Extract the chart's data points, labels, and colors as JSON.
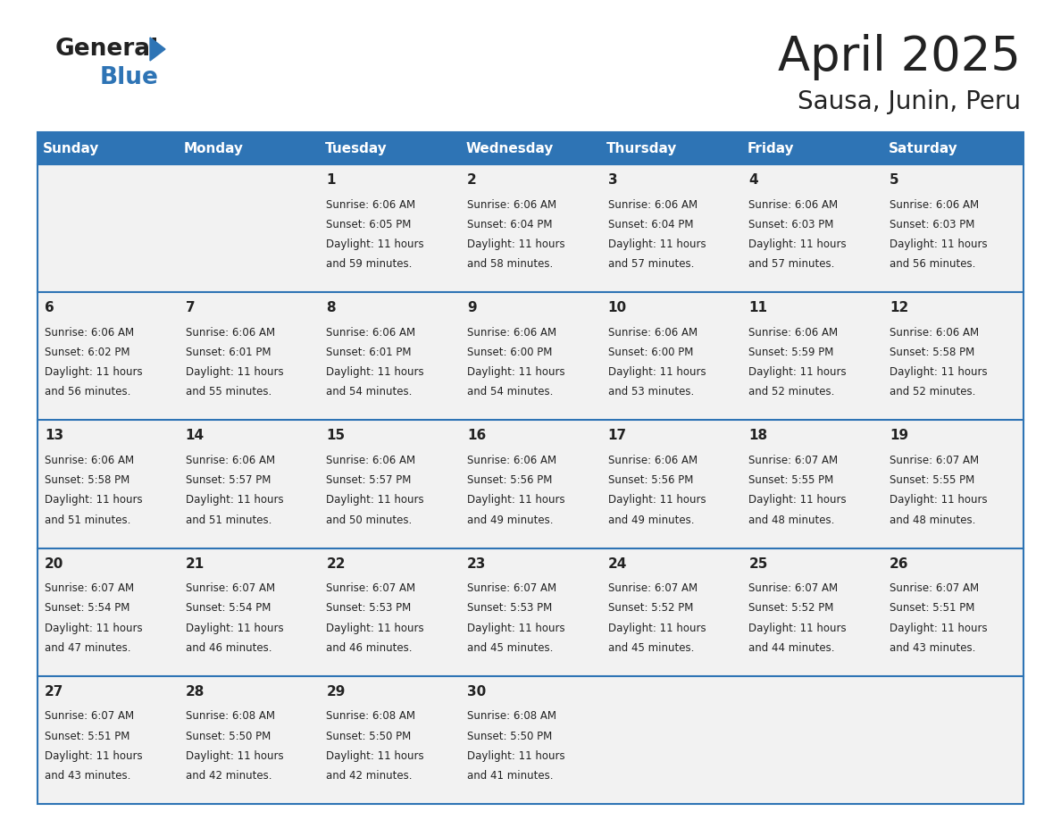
{
  "title": "April 2025",
  "subtitle": "Sausa, Junin, Peru",
  "header_color": "#2E74B5",
  "header_text_color": "#FFFFFF",
  "cell_bg_even": "#F2F2F2",
  "cell_bg_odd": "#FFFFFF",
  "cell_border_color": "#2E74B5",
  "day_headers": [
    "Sunday",
    "Monday",
    "Tuesday",
    "Wednesday",
    "Thursday",
    "Friday",
    "Saturday"
  ],
  "calendar_data": [
    [
      null,
      null,
      {
        "day": 1,
        "sunrise": "6:06 AM",
        "sunset": "6:05 PM",
        "daylight": "11 hours and 59 minutes"
      },
      {
        "day": 2,
        "sunrise": "6:06 AM",
        "sunset": "6:04 PM",
        "daylight": "11 hours and 58 minutes"
      },
      {
        "day": 3,
        "sunrise": "6:06 AM",
        "sunset": "6:04 PM",
        "daylight": "11 hours and 57 minutes"
      },
      {
        "day": 4,
        "sunrise": "6:06 AM",
        "sunset": "6:03 PM",
        "daylight": "11 hours and 57 minutes"
      },
      {
        "day": 5,
        "sunrise": "6:06 AM",
        "sunset": "6:03 PM",
        "daylight": "11 hours and 56 minutes"
      }
    ],
    [
      {
        "day": 6,
        "sunrise": "6:06 AM",
        "sunset": "6:02 PM",
        "daylight": "11 hours and 56 minutes"
      },
      {
        "day": 7,
        "sunrise": "6:06 AM",
        "sunset": "6:01 PM",
        "daylight": "11 hours and 55 minutes"
      },
      {
        "day": 8,
        "sunrise": "6:06 AM",
        "sunset": "6:01 PM",
        "daylight": "11 hours and 54 minutes"
      },
      {
        "day": 9,
        "sunrise": "6:06 AM",
        "sunset": "6:00 PM",
        "daylight": "11 hours and 54 minutes"
      },
      {
        "day": 10,
        "sunrise": "6:06 AM",
        "sunset": "6:00 PM",
        "daylight": "11 hours and 53 minutes"
      },
      {
        "day": 11,
        "sunrise": "6:06 AM",
        "sunset": "5:59 PM",
        "daylight": "11 hours and 52 minutes"
      },
      {
        "day": 12,
        "sunrise": "6:06 AM",
        "sunset": "5:58 PM",
        "daylight": "11 hours and 52 minutes"
      }
    ],
    [
      {
        "day": 13,
        "sunrise": "6:06 AM",
        "sunset": "5:58 PM",
        "daylight": "11 hours and 51 minutes"
      },
      {
        "day": 14,
        "sunrise": "6:06 AM",
        "sunset": "5:57 PM",
        "daylight": "11 hours and 51 minutes"
      },
      {
        "day": 15,
        "sunrise": "6:06 AM",
        "sunset": "5:57 PM",
        "daylight": "11 hours and 50 minutes"
      },
      {
        "day": 16,
        "sunrise": "6:06 AM",
        "sunset": "5:56 PM",
        "daylight": "11 hours and 49 minutes"
      },
      {
        "day": 17,
        "sunrise": "6:06 AM",
        "sunset": "5:56 PM",
        "daylight": "11 hours and 49 minutes"
      },
      {
        "day": 18,
        "sunrise": "6:07 AM",
        "sunset": "5:55 PM",
        "daylight": "11 hours and 48 minutes"
      },
      {
        "day": 19,
        "sunrise": "6:07 AM",
        "sunset": "5:55 PM",
        "daylight": "11 hours and 48 minutes"
      }
    ],
    [
      {
        "day": 20,
        "sunrise": "6:07 AM",
        "sunset": "5:54 PM",
        "daylight": "11 hours and 47 minutes"
      },
      {
        "day": 21,
        "sunrise": "6:07 AM",
        "sunset": "5:54 PM",
        "daylight": "11 hours and 46 minutes"
      },
      {
        "day": 22,
        "sunrise": "6:07 AM",
        "sunset": "5:53 PM",
        "daylight": "11 hours and 46 minutes"
      },
      {
        "day": 23,
        "sunrise": "6:07 AM",
        "sunset": "5:53 PM",
        "daylight": "11 hours and 45 minutes"
      },
      {
        "day": 24,
        "sunrise": "6:07 AM",
        "sunset": "5:52 PM",
        "daylight": "11 hours and 45 minutes"
      },
      {
        "day": 25,
        "sunrise": "6:07 AM",
        "sunset": "5:52 PM",
        "daylight": "11 hours and 44 minutes"
      },
      {
        "day": 26,
        "sunrise": "6:07 AM",
        "sunset": "5:51 PM",
        "daylight": "11 hours and 43 minutes"
      }
    ],
    [
      {
        "day": 27,
        "sunrise": "6:07 AM",
        "sunset": "5:51 PM",
        "daylight": "11 hours and 43 minutes"
      },
      {
        "day": 28,
        "sunrise": "6:08 AM",
        "sunset": "5:50 PM",
        "daylight": "11 hours and 42 minutes"
      },
      {
        "day": 29,
        "sunrise": "6:08 AM",
        "sunset": "5:50 PM",
        "daylight": "11 hours and 42 minutes"
      },
      {
        "day": 30,
        "sunrise": "6:08 AM",
        "sunset": "5:50 PM",
        "daylight": "11 hours and 41 minutes"
      },
      null,
      null,
      null
    ]
  ],
  "bg_color": "#FFFFFF",
  "title_fontsize": 38,
  "subtitle_fontsize": 20,
  "header_fontsize": 11,
  "day_num_fontsize": 11,
  "cell_text_fontsize": 8.5
}
